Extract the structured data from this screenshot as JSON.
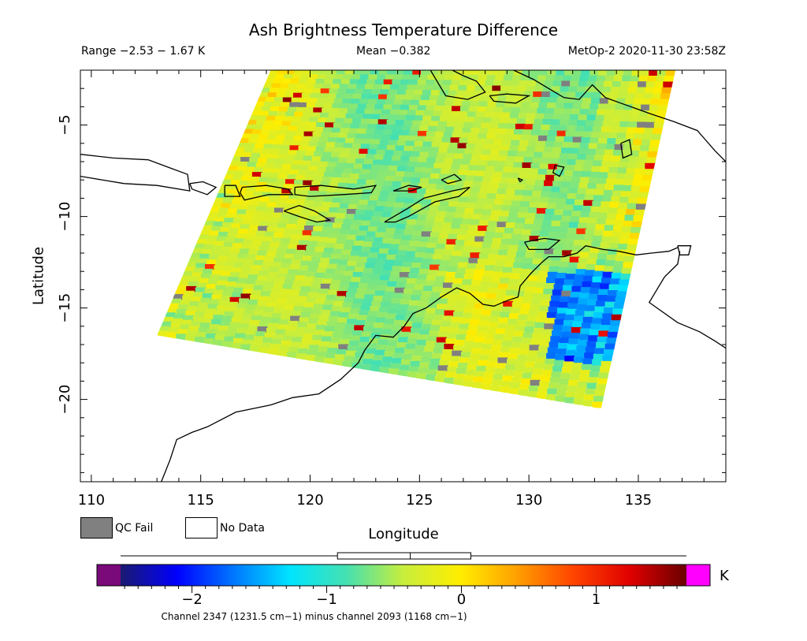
{
  "header": {
    "title": "Ash Brightness Temperature Difference",
    "range": "Range −2.53 − 1.67 K",
    "mean": "Mean −0.382",
    "satellite": "MetOp-2 2020-11-30 23:58Z"
  },
  "legend": {
    "qc_fail": "QC Fail",
    "no_data": "No Data",
    "qc_color": "#808080",
    "no_data_color": "#ffffff"
  },
  "colorbar": {
    "unit": "K",
    "min": -2.53,
    "max": 1.67,
    "ticks": [
      {
        "value": -2,
        "label": "−2"
      },
      {
        "value": -1,
        "label": "−1"
      },
      {
        "value": 0,
        "label": "0"
      },
      {
        "value": 1,
        "label": "1"
      }
    ],
    "underflow_color": "#7a0a7a",
    "overflow_color": "#ff00ff",
    "stops": [
      "#1a1a70",
      "#0000ff",
      "#0077ff",
      "#00e5ff",
      "#46e0b0",
      "#c8ee3c",
      "#ffee00",
      "#ffa000",
      "#ff4400",
      "#e00000",
      "#6a0000"
    ],
    "boxplot": {
      "min": -2.53,
      "q1": -0.92,
      "median": -0.38,
      "q3": 0.07,
      "max": 1.67
    }
  },
  "caption": "Channel 2347 (1231.5 cm−1) minus channel 2093 (1168 cm−1)",
  "chart_data": {
    "type": "heatmap",
    "title": "Ash Brightness Temperature Difference",
    "xlabel": "Longitude",
    "ylabel": "Latitude",
    "xlim": [
      109.5,
      139
    ],
    "ylim": [
      -24.5,
      -2
    ],
    "xticks": [
      {
        "value": 110,
        "label": "110"
      },
      {
        "value": 115,
        "label": "115"
      },
      {
        "value": 120,
        "label": "120"
      },
      {
        "value": 125,
        "label": "125"
      },
      {
        "value": 130,
        "label": "130"
      },
      {
        "value": 135,
        "label": "135"
      }
    ],
    "yticks": [
      {
        "value": -5,
        "label": "−5"
      },
      {
        "value": -10,
        "label": "−10"
      },
      {
        "value": -15,
        "label": "−15"
      },
      {
        "value": -20,
        "label": "−20"
      }
    ],
    "swath_corners": [
      [
        113,
        -16.5
      ],
      [
        118.2,
        -2
      ],
      [
        136.7,
        -2
      ],
      [
        133.3,
        -20.5
      ]
    ],
    "value_range": [
      -2.53,
      1.67
    ],
    "mean": -0.382,
    "coastline_color": "#000000",
    "coastlines": [
      [
        [
          109.5,
          -6.6
        ],
        [
          111,
          -6.8
        ],
        [
          112.6,
          -6.9
        ],
        [
          113.5,
          -7.3
        ],
        [
          114.4,
          -7.7
        ],
        [
          114.5,
          -8.6
        ],
        [
          113,
          -8.3
        ],
        [
          111.5,
          -8.2
        ],
        [
          110,
          -7.9
        ],
        [
          109.5,
          -7.8
        ]
      ],
      [
        [
          114.5,
          -8.2
        ],
        [
          115.1,
          -8.1
        ],
        [
          115.7,
          -8.4
        ],
        [
          115.3,
          -8.8
        ],
        [
          114.6,
          -8.5
        ],
        [
          114.5,
          -8.2
        ]
      ],
      [
        [
          116.1,
          -8.3
        ],
        [
          116.6,
          -8.3
        ],
        [
          116.8,
          -8.9
        ],
        [
          116.1,
          -8.9
        ],
        [
          116.1,
          -8.3
        ]
      ],
      [
        [
          116.9,
          -8.4
        ],
        [
          118,
          -8.3
        ],
        [
          119,
          -8.5
        ],
        [
          119.2,
          -8.8
        ],
        [
          118.1,
          -8.8
        ],
        [
          117,
          -9.1
        ],
        [
          116.8,
          -8.7
        ],
        [
          116.9,
          -8.4
        ]
      ],
      [
        [
          119.3,
          -8.4
        ],
        [
          120.5,
          -8.3
        ],
        [
          122,
          -8.5
        ],
        [
          123,
          -8.3
        ],
        [
          122.8,
          -8.7
        ],
        [
          121.5,
          -8.8
        ],
        [
          120,
          -8.9
        ],
        [
          119.3,
          -8.8
        ],
        [
          119.3,
          -8.4
        ]
      ],
      [
        [
          118.8,
          -9.7
        ],
        [
          119.5,
          -9.4
        ],
        [
          120.2,
          -9.7
        ],
        [
          120.9,
          -10.2
        ],
        [
          120.3,
          -10.3
        ],
        [
          119.5,
          -10.0
        ],
        [
          118.8,
          -9.7
        ]
      ],
      [
        [
          123.4,
          -10.3
        ],
        [
          124.4,
          -9.6
        ],
        [
          125.2,
          -9.0
        ],
        [
          126.5,
          -8.6
        ],
        [
          127.3,
          -8.4
        ],
        [
          126.8,
          -8.9
        ],
        [
          125.7,
          -9.2
        ],
        [
          124.5,
          -10.0
        ],
        [
          123.9,
          -10.3
        ],
        [
          123.4,
          -10.3
        ]
      ],
      [
        [
          123.8,
          -8.6
        ],
        [
          124.5,
          -8.3
        ],
        [
          125.1,
          -8.4
        ],
        [
          124.6,
          -8.6
        ],
        [
          123.8,
          -8.6
        ]
      ],
      [
        [
          126,
          -8.0
        ],
        [
          126.6,
          -7.7
        ],
        [
          126.9,
          -8.0
        ],
        [
          126.3,
          -8.2
        ],
        [
          126,
          -8.0
        ]
      ],
      [
        [
          129.3,
          -2
        ],
        [
          130.2,
          -2.5
        ],
        [
          130.9,
          -3.0
        ],
        [
          131.6,
          -3.5
        ],
        [
          132.3,
          -3.6
        ],
        [
          132.9,
          -2.8
        ],
        [
          133.5,
          -3.5
        ],
        [
          134.2,
          -3.8
        ],
        [
          134.9,
          -4.1
        ],
        [
          135.6,
          -4.4
        ],
        [
          136.6,
          -4.8
        ],
        [
          137.7,
          -5.3
        ],
        [
          138.5,
          -6.4
        ],
        [
          139,
          -7.0
        ]
      ],
      [
        [
          125.5,
          -2
        ],
        [
          126.2,
          -3.4
        ],
        [
          127.2,
          -3.6
        ],
        [
          128.0,
          -3.2
        ],
        [
          127.6,
          -2.6
        ],
        [
          127.0,
          -2.3
        ],
        [
          126.5,
          -2
        ]
      ],
      [
        [
          128.2,
          -3.4
        ],
        [
          129.0,
          -3.3
        ],
        [
          130.0,
          -3.4
        ],
        [
          129.4,
          -3.8
        ],
        [
          128.4,
          -3.7
        ],
        [
          128.2,
          -3.4
        ]
      ],
      [
        [
          129.5,
          -7.9
        ],
        [
          129.7,
          -8.0
        ],
        [
          129.6,
          -8.1
        ],
        [
          129.5,
          -7.9
        ]
      ],
      [
        [
          131.2,
          -7.2
        ],
        [
          131.6,
          -7.3
        ],
        [
          131.4,
          -7.8
        ],
        [
          131.1,
          -7.6
        ],
        [
          131.2,
          -7.2
        ]
      ],
      [
        [
          134.2,
          -6.0
        ],
        [
          134.6,
          -5.8
        ],
        [
          134.7,
          -6.6
        ],
        [
          134.3,
          -6.8
        ],
        [
          134.2,
          -6.0
        ]
      ],
      [
        [
          129.8,
          -11.4
        ],
        [
          130.7,
          -11.2
        ],
        [
          131.4,
          -11.3
        ],
        [
          130.9,
          -11.8
        ],
        [
          130.0,
          -11.8
        ],
        [
          129.8,
          -11.4
        ]
      ],
      [
        [
          136.8,
          -11.6
        ],
        [
          137.4,
          -11.6
        ],
        [
          137.3,
          -12.1
        ],
        [
          136.9,
          -12.1
        ],
        [
          136.8,
          -11.6
        ]
      ],
      [
        [
          136.9,
          -11.9
        ],
        [
          136.8,
          -12.6
        ],
        [
          136.2,
          -13.3
        ],
        [
          135.9,
          -13.9
        ],
        [
          135.5,
          -14.7
        ],
        [
          136.8,
          -15.8
        ],
        [
          137.8,
          -16.3
        ],
        [
          138.5,
          -16.8
        ],
        [
          139,
          -17.2
        ]
      ],
      [
        [
          113.2,
          -24.5
        ],
        [
          113.6,
          -23.3
        ],
        [
          113.9,
          -22.2
        ],
        [
          114.6,
          -21.8
        ],
        [
          115.3,
          -21.5
        ],
        [
          116.6,
          -20.7
        ],
        [
          118.2,
          -20.3
        ],
        [
          119.2,
          -19.9
        ],
        [
          120.4,
          -19.7
        ],
        [
          121.4,
          -18.9
        ],
        [
          122.2,
          -18.0
        ],
        [
          122.5,
          -17.3
        ],
        [
          123.0,
          -16.5
        ],
        [
          123.8,
          -16.6
        ],
        [
          124.3,
          -16.0
        ],
        [
          124.7,
          -15.3
        ],
        [
          125.3,
          -15.0
        ],
        [
          126.0,
          -14.4
        ],
        [
          126.7,
          -13.9
        ],
        [
          127.3,
          -14.2
        ],
        [
          127.9,
          -14.8
        ],
        [
          128.4,
          -14.9
        ],
        [
          129.0,
          -14.6
        ],
        [
          129.5,
          -14.4
        ],
        [
          129.6,
          -13.8
        ],
        [
          130.1,
          -13.1
        ],
        [
          130.6,
          -12.5
        ],
        [
          130.9,
          -12.2
        ],
        [
          131.6,
          -12.2
        ],
        [
          132.2,
          -12.0
        ],
        [
          132.6,
          -11.6
        ],
        [
          133.4,
          -11.8
        ],
        [
          134.1,
          -11.9
        ],
        [
          134.9,
          -12.1
        ],
        [
          135.6,
          -12.0
        ],
        [
          136.4,
          -11.9
        ],
        [
          136.8,
          -11.7
        ]
      ]
    ]
  }
}
